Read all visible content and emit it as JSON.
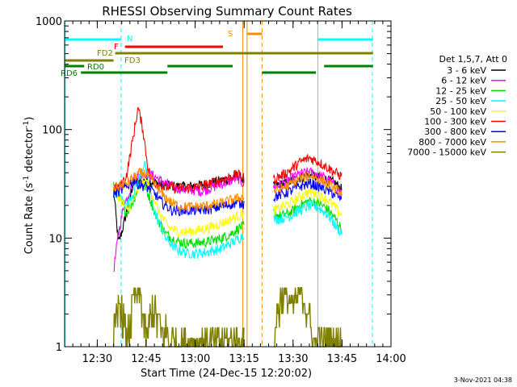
{
  "chart_data": {
    "type": "line",
    "title": "RHESSI Observing Summary Count Rates",
    "xlabel": "Start Time (24-Dec-15 12:20:02)",
    "ylabel_main": "Count Rate (s",
    "ylabel_sup1": "-1",
    "ylabel_mid": " detector",
    "ylabel_sup2": "-1",
    "ylabel_end": ")",
    "yscale": "log",
    "xlim_min": [
      740,
      840
    ],
    "ylim": [
      1,
      1000
    ],
    "x_ticks": [
      {
        "min": 750,
        "label": "12:30"
      },
      {
        "min": 765,
        "label": "12:45"
      },
      {
        "min": 780,
        "label": "13:00"
      },
      {
        "min": 795,
        "label": "13:15"
      },
      {
        "min": 810,
        "label": "13:30"
      },
      {
        "min": 825,
        "label": "13:45"
      },
      {
        "min": 840,
        "label": "14:00"
      }
    ],
    "y_ticks": [
      {
        "value": 1,
        "label": "1"
      },
      {
        "value": 10,
        "label": "10"
      },
      {
        "value": 100,
        "label": "100"
      },
      {
        "value": 1000,
        "label": "1000"
      }
    ],
    "legend_title": "Det 1,5,7, Att 0",
    "series": [
      {
        "name": "3 - 6 keV",
        "color": "#000000",
        "seg1": [
          [
            755,
            28
          ],
          [
            756.5,
            9
          ],
          [
            758,
            13
          ],
          [
            761,
            32
          ],
          [
            765,
            34
          ],
          [
            767,
            33
          ],
          [
            770,
            31
          ],
          [
            774,
            30
          ],
          [
            778,
            30
          ],
          [
            782,
            31
          ],
          [
            786,
            33
          ],
          [
            790,
            35
          ],
          [
            793,
            38
          ],
          [
            795,
            34
          ]
        ],
        "seg2": [
          [
            804,
            30
          ],
          [
            806,
            31
          ],
          [
            809,
            33
          ],
          [
            812,
            36
          ],
          [
            815,
            38
          ],
          [
            818,
            36
          ],
          [
            821,
            34
          ],
          [
            823,
            32
          ],
          [
            825,
            28
          ]
        ]
      },
      {
        "name": "6 - 12 keV",
        "color": "#ff00ff",
        "seg1": [
          [
            755,
            5
          ],
          [
            756.5,
            11
          ],
          [
            758,
            19
          ],
          [
            761,
            34
          ],
          [
            764,
            40
          ],
          [
            767,
            38
          ],
          [
            770,
            33
          ],
          [
            774,
            29
          ],
          [
            778,
            28
          ],
          [
            782,
            27
          ],
          [
            786,
            30
          ],
          [
            790,
            33
          ],
          [
            793,
            36
          ],
          [
            795,
            31
          ]
        ],
        "seg2": [
          [
            804,
            30
          ],
          [
            806,
            31
          ],
          [
            809,
            35
          ],
          [
            812,
            39
          ],
          [
            815,
            41
          ],
          [
            818,
            38
          ],
          [
            821,
            34
          ],
          [
            823,
            30
          ],
          [
            825,
            26
          ]
        ]
      },
      {
        "name": "12 - 25 keV",
        "color": "#00dd00",
        "seg1": [
          [
            755,
            30
          ],
          [
            757,
            22
          ],
          [
            759,
            17
          ],
          [
            761,
            22
          ],
          [
            763,
            32
          ],
          [
            764.5,
            30
          ],
          [
            766,
            24
          ],
          [
            768,
            16
          ],
          [
            771,
            11
          ],
          [
            774,
            9.5
          ],
          [
            777,
            9
          ],
          [
            780,
            9
          ],
          [
            784,
            9.3
          ],
          [
            788,
            10
          ],
          [
            791,
            11
          ],
          [
            793.5,
            12.5
          ],
          [
            795,
            13
          ]
        ],
        "seg2": [
          [
            804,
            17
          ],
          [
            806,
            16
          ],
          [
            809,
            17
          ],
          [
            812,
            20
          ],
          [
            815,
            22
          ],
          [
            818,
            21
          ],
          [
            821,
            18
          ],
          [
            823,
            15
          ],
          [
            825,
            12
          ]
        ]
      },
      {
        "name": "25 - 50 keV",
        "color": "#00ffff",
        "seg1": [
          [
            755,
            27
          ],
          [
            757,
            24
          ],
          [
            759,
            20
          ],
          [
            761,
            26
          ],
          [
            763,
            37
          ],
          [
            764.5,
            50
          ],
          [
            766,
            28
          ],
          [
            768,
            16
          ],
          [
            771,
            10
          ],
          [
            774,
            8
          ],
          [
            777,
            7.3
          ],
          [
            780,
            7.2
          ],
          [
            784,
            7.5
          ],
          [
            788,
            8
          ],
          [
            791,
            9
          ],
          [
            793.5,
            10
          ],
          [
            795,
            11
          ]
        ],
        "seg2": [
          [
            804,
            15
          ],
          [
            806,
            15
          ],
          [
            809,
            16
          ],
          [
            812,
            18
          ],
          [
            815,
            20
          ],
          [
            818,
            19
          ],
          [
            821,
            16
          ],
          [
            823,
            13
          ],
          [
            825,
            11
          ]
        ]
      },
      {
        "name": "50 - 100 keV",
        "color": "#ffff00",
        "seg1": [
          [
            755,
            29
          ],
          [
            757,
            23
          ],
          [
            759,
            18
          ],
          [
            761,
            22
          ],
          [
            763,
            30
          ],
          [
            765,
            33
          ],
          [
            767,
            25
          ],
          [
            769,
            17
          ],
          [
            772,
            12.5
          ],
          [
            775,
            11.5
          ],
          [
            778,
            11.5
          ],
          [
            782,
            12
          ],
          [
            786,
            13
          ],
          [
            790,
            14.5
          ],
          [
            793,
            16
          ],
          [
            795,
            17
          ]
        ],
        "seg2": [
          [
            804,
            18
          ],
          [
            806,
            19
          ],
          [
            809,
            21
          ],
          [
            812,
            24
          ],
          [
            815,
            27
          ],
          [
            818,
            25
          ],
          [
            821,
            22
          ],
          [
            823,
            19
          ],
          [
            825,
            16
          ]
        ]
      },
      {
        "name": "100 - 300 keV",
        "color": "#ff0000",
        "seg1": [
          [
            755,
            29
          ],
          [
            757,
            30
          ],
          [
            759,
            38
          ],
          [
            761,
            85
          ],
          [
            762.5,
            160
          ],
          [
            764,
            100
          ],
          [
            765.5,
            45
          ],
          [
            767,
            33
          ],
          [
            770,
            30
          ],
          [
            774,
            29
          ],
          [
            778,
            29
          ],
          [
            782,
            30
          ],
          [
            786,
            33
          ],
          [
            790,
            36
          ],
          [
            793,
            39
          ],
          [
            795,
            36
          ]
        ],
        "seg2": [
          [
            804,
            35
          ],
          [
            806,
            37
          ],
          [
            809,
            42
          ],
          [
            812,
            50
          ],
          [
            815,
            55
          ],
          [
            818,
            50
          ],
          [
            821,
            44
          ],
          [
            823,
            40
          ],
          [
            825,
            37
          ]
        ]
      },
      {
        "name": "300 - 800 keV",
        "color": "#0000ff",
        "seg1": [
          [
            755,
            26
          ],
          [
            757,
            27
          ],
          [
            759,
            30
          ],
          [
            761,
            34
          ],
          [
            763,
            31
          ],
          [
            765,
            30
          ],
          [
            767,
            27
          ],
          [
            770,
            21
          ],
          [
            773,
            18
          ],
          [
            776,
            18
          ],
          [
            780,
            18
          ],
          [
            784,
            18.5
          ],
          [
            788,
            19.5
          ],
          [
            792,
            21
          ],
          [
            795,
            21
          ]
        ],
        "seg2": [
          [
            804,
            24
          ],
          [
            806,
            25
          ],
          [
            809,
            27
          ],
          [
            812,
            30
          ],
          [
            815,
            32
          ],
          [
            818,
            30
          ],
          [
            821,
            27
          ],
          [
            823,
            25
          ],
          [
            825,
            23
          ]
        ]
      },
      {
        "name": "800 - 7000 keV",
        "color": "#ff8c00",
        "seg1": [
          [
            755,
            29
          ],
          [
            757,
            30
          ],
          [
            759,
            32
          ],
          [
            761,
            36
          ],
          [
            763,
            40
          ],
          [
            765,
            39
          ],
          [
            767,
            33
          ],
          [
            770,
            25
          ],
          [
            773,
            21
          ],
          [
            776,
            19.5
          ],
          [
            780,
            19.5
          ],
          [
            784,
            20
          ],
          [
            788,
            21
          ],
          [
            792,
            23
          ],
          [
            795,
            24
          ]
        ],
        "seg2": [
          [
            804,
            27
          ],
          [
            806,
            28
          ],
          [
            809,
            31
          ],
          [
            812,
            35
          ],
          [
            815,
            38
          ],
          [
            818,
            35
          ],
          [
            821,
            31
          ],
          [
            823,
            28
          ],
          [
            825,
            26
          ]
        ]
      },
      {
        "name": "7000 - 15000 keV",
        "color": "#808000",
        "seg1": [
          [
            755,
            1.3
          ],
          [
            757,
            2.6
          ],
          [
            759,
            1.2
          ],
          [
            761,
            2.6
          ],
          [
            763,
            3.3
          ],
          [
            765,
            1.2
          ],
          [
            767,
            2.4
          ],
          [
            769,
            1.7
          ],
          [
            771,
            1.4
          ],
          [
            773,
            1.3
          ],
          [
            776,
            1.2
          ],
          [
            780,
            1.2
          ],
          [
            784,
            1.2
          ],
          [
            788,
            1.2
          ],
          [
            792,
            1.2
          ],
          [
            795,
            1.2
          ]
        ],
        "seg2": [
          [
            804,
            1.3
          ],
          [
            806,
            2.7
          ],
          [
            808,
            3.0
          ],
          [
            810,
            2.4
          ],
          [
            812,
            3.3
          ],
          [
            814,
            2.6
          ],
          [
            816,
            1.3
          ],
          [
            818,
            1.2
          ],
          [
            820,
            1.2
          ],
          [
            823,
            1.2
          ],
          [
            825,
            1.2
          ]
        ]
      }
    ],
    "markers": {
      "N_label": "N",
      "F_label": "F",
      "S_label": "S",
      "FD2_label": "FD2",
      "FD3_label": "FD3",
      "RD0_label": "RD0",
      "RD6_label": "RD6"
    }
  },
  "footer": {
    "date": "3-Nov-2021 04:38"
  }
}
